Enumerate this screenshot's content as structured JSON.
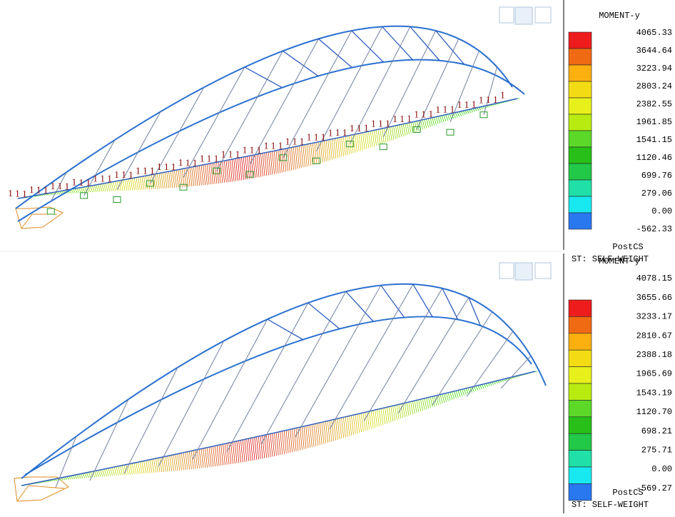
{
  "panels": [
    {
      "legend_title": "MOMENT-y",
      "legend_labels": [
        "4065.33",
        "3644.64",
        "3223.94",
        "2803.24",
        "2382.55",
        "1961.85",
        "1541.15",
        "1120.46",
        "699.76",
        "279.06",
        "0.00",
        "-562.33"
      ],
      "stage": "PostCS",
      "load_case": "ST: SELF-WEIGHT",
      "support_label": "1"
    },
    {
      "legend_title": "MOMENT-y",
      "legend_labels": [
        "4078.15",
        "3655.66",
        "3233.17",
        "2810.67",
        "2388.18",
        "1965.69",
        "1543.19",
        "1120.70",
        "698.21",
        "275.71",
        "0.00",
        "-569.27"
      ],
      "stage": "PostCS",
      "load_case": "ST: SELF-WEIGHT"
    }
  ],
  "legend_colors": [
    "#ee1c1c",
    "#f06a14",
    "#fbb010",
    "#f3dc14",
    "#e8f01c",
    "#b8ec10",
    "#5cd828",
    "#28c018",
    "#22c848",
    "#20e0a8",
    "#18e8f0",
    "#2a78f0"
  ]
}
